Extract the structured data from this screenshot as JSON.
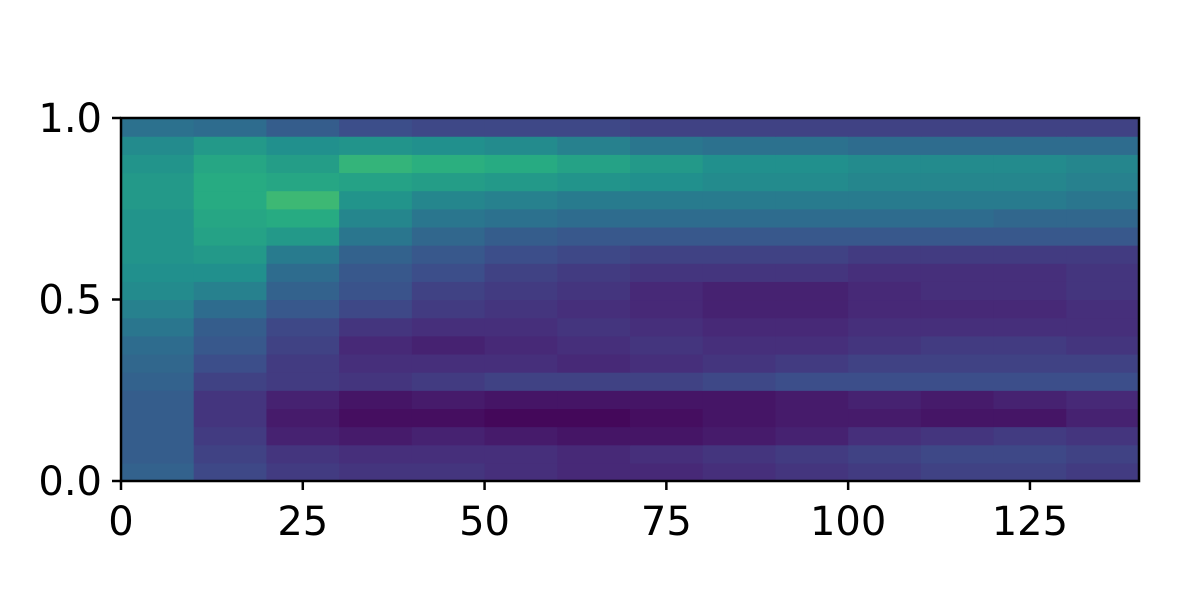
{
  "chart_data": {
    "type": "heatmap",
    "title": "",
    "xlabel": "",
    "ylabel": "",
    "xlim": [
      0,
      140
    ],
    "ylim": [
      0,
      1
    ],
    "x_ticks": [
      0,
      25,
      50,
      75,
      100,
      125
    ],
    "x_tick_labels": [
      "0",
      "25",
      "50",
      "75",
      "100",
      "125"
    ],
    "y_ticks": [
      0,
      0.5,
      1
    ],
    "y_tick_labels": [
      "0.0",
      "0.5",
      "1.0"
    ],
    "colormap": "viridis",
    "colors": {
      "low": "#440154",
      "mid": "#21918c",
      "high": "#fde725"
    },
    "grid": false,
    "legend": "none",
    "x_bands": [
      0,
      10,
      20,
      30,
      40,
      50,
      60,
      70,
      80,
      90,
      100,
      110,
      120,
      130,
      140
    ],
    "y_bands": [
      0,
      0.05,
      0.1,
      0.15,
      0.2,
      0.25,
      0.3,
      0.35,
      0.4,
      0.45,
      0.5,
      0.55,
      0.6,
      0.65,
      0.7,
      0.75,
      0.8,
      0.85,
      0.9,
      0.95,
      1.0
    ],
    "z": [
      [
        0.32,
        0.22,
        0.18,
        0.16,
        0.16,
        0.14,
        0.12,
        0.12,
        0.14,
        0.16,
        0.18,
        0.2,
        0.2,
        0.18
      ],
      [
        0.3,
        0.2,
        0.16,
        0.14,
        0.14,
        0.14,
        0.12,
        0.14,
        0.16,
        0.18,
        0.2,
        0.22,
        0.22,
        0.2
      ],
      [
        0.3,
        0.18,
        0.1,
        0.08,
        0.1,
        0.08,
        0.06,
        0.06,
        0.08,
        0.1,
        0.14,
        0.16,
        0.18,
        0.16
      ],
      [
        0.3,
        0.16,
        0.08,
        0.04,
        0.04,
        0.02,
        0.02,
        0.04,
        0.06,
        0.08,
        0.08,
        0.06,
        0.06,
        0.1
      ],
      [
        0.3,
        0.16,
        0.1,
        0.06,
        0.08,
        0.06,
        0.06,
        0.06,
        0.06,
        0.08,
        0.1,
        0.08,
        0.1,
        0.12
      ],
      [
        0.32,
        0.2,
        0.18,
        0.16,
        0.18,
        0.2,
        0.2,
        0.2,
        0.22,
        0.24,
        0.24,
        0.24,
        0.24,
        0.24
      ],
      [
        0.34,
        0.24,
        0.18,
        0.14,
        0.14,
        0.14,
        0.12,
        0.14,
        0.16,
        0.18,
        0.2,
        0.2,
        0.2,
        0.2
      ],
      [
        0.36,
        0.28,
        0.2,
        0.12,
        0.1,
        0.12,
        0.14,
        0.16,
        0.14,
        0.14,
        0.16,
        0.18,
        0.18,
        0.16
      ],
      [
        0.4,
        0.3,
        0.22,
        0.16,
        0.14,
        0.14,
        0.16,
        0.14,
        0.12,
        0.12,
        0.14,
        0.14,
        0.14,
        0.14
      ],
      [
        0.44,
        0.36,
        0.28,
        0.22,
        0.18,
        0.16,
        0.14,
        0.12,
        0.1,
        0.1,
        0.12,
        0.12,
        0.12,
        0.14
      ],
      [
        0.48,
        0.44,
        0.32,
        0.26,
        0.2,
        0.18,
        0.16,
        0.12,
        0.1,
        0.1,
        0.12,
        0.14,
        0.14,
        0.16
      ],
      [
        0.5,
        0.5,
        0.36,
        0.28,
        0.24,
        0.2,
        0.18,
        0.16,
        0.16,
        0.16,
        0.14,
        0.14,
        0.14,
        0.16
      ],
      [
        0.52,
        0.54,
        0.42,
        0.32,
        0.28,
        0.24,
        0.22,
        0.2,
        0.2,
        0.2,
        0.18,
        0.18,
        0.18,
        0.18
      ],
      [
        0.52,
        0.58,
        0.54,
        0.4,
        0.34,
        0.3,
        0.28,
        0.28,
        0.28,
        0.28,
        0.28,
        0.28,
        0.28,
        0.28
      ],
      [
        0.52,
        0.6,
        0.62,
        0.46,
        0.4,
        0.38,
        0.36,
        0.36,
        0.36,
        0.36,
        0.36,
        0.36,
        0.34,
        0.34
      ],
      [
        0.54,
        0.62,
        0.68,
        0.52,
        0.46,
        0.44,
        0.42,
        0.42,
        0.42,
        0.42,
        0.42,
        0.42,
        0.42,
        0.4
      ],
      [
        0.54,
        0.62,
        0.6,
        0.58,
        0.56,
        0.54,
        0.52,
        0.5,
        0.48,
        0.48,
        0.46,
        0.46,
        0.46,
        0.44
      ],
      [
        0.52,
        0.6,
        0.56,
        0.66,
        0.64,
        0.62,
        0.58,
        0.54,
        0.5,
        0.5,
        0.48,
        0.48,
        0.48,
        0.46
      ],
      [
        0.48,
        0.54,
        0.5,
        0.52,
        0.5,
        0.48,
        0.44,
        0.4,
        0.38,
        0.38,
        0.36,
        0.36,
        0.36,
        0.36
      ],
      [
        0.38,
        0.36,
        0.3,
        0.24,
        0.22,
        0.22,
        0.22,
        0.2,
        0.2,
        0.2,
        0.2,
        0.2,
        0.2,
        0.2
      ]
    ]
  }
}
